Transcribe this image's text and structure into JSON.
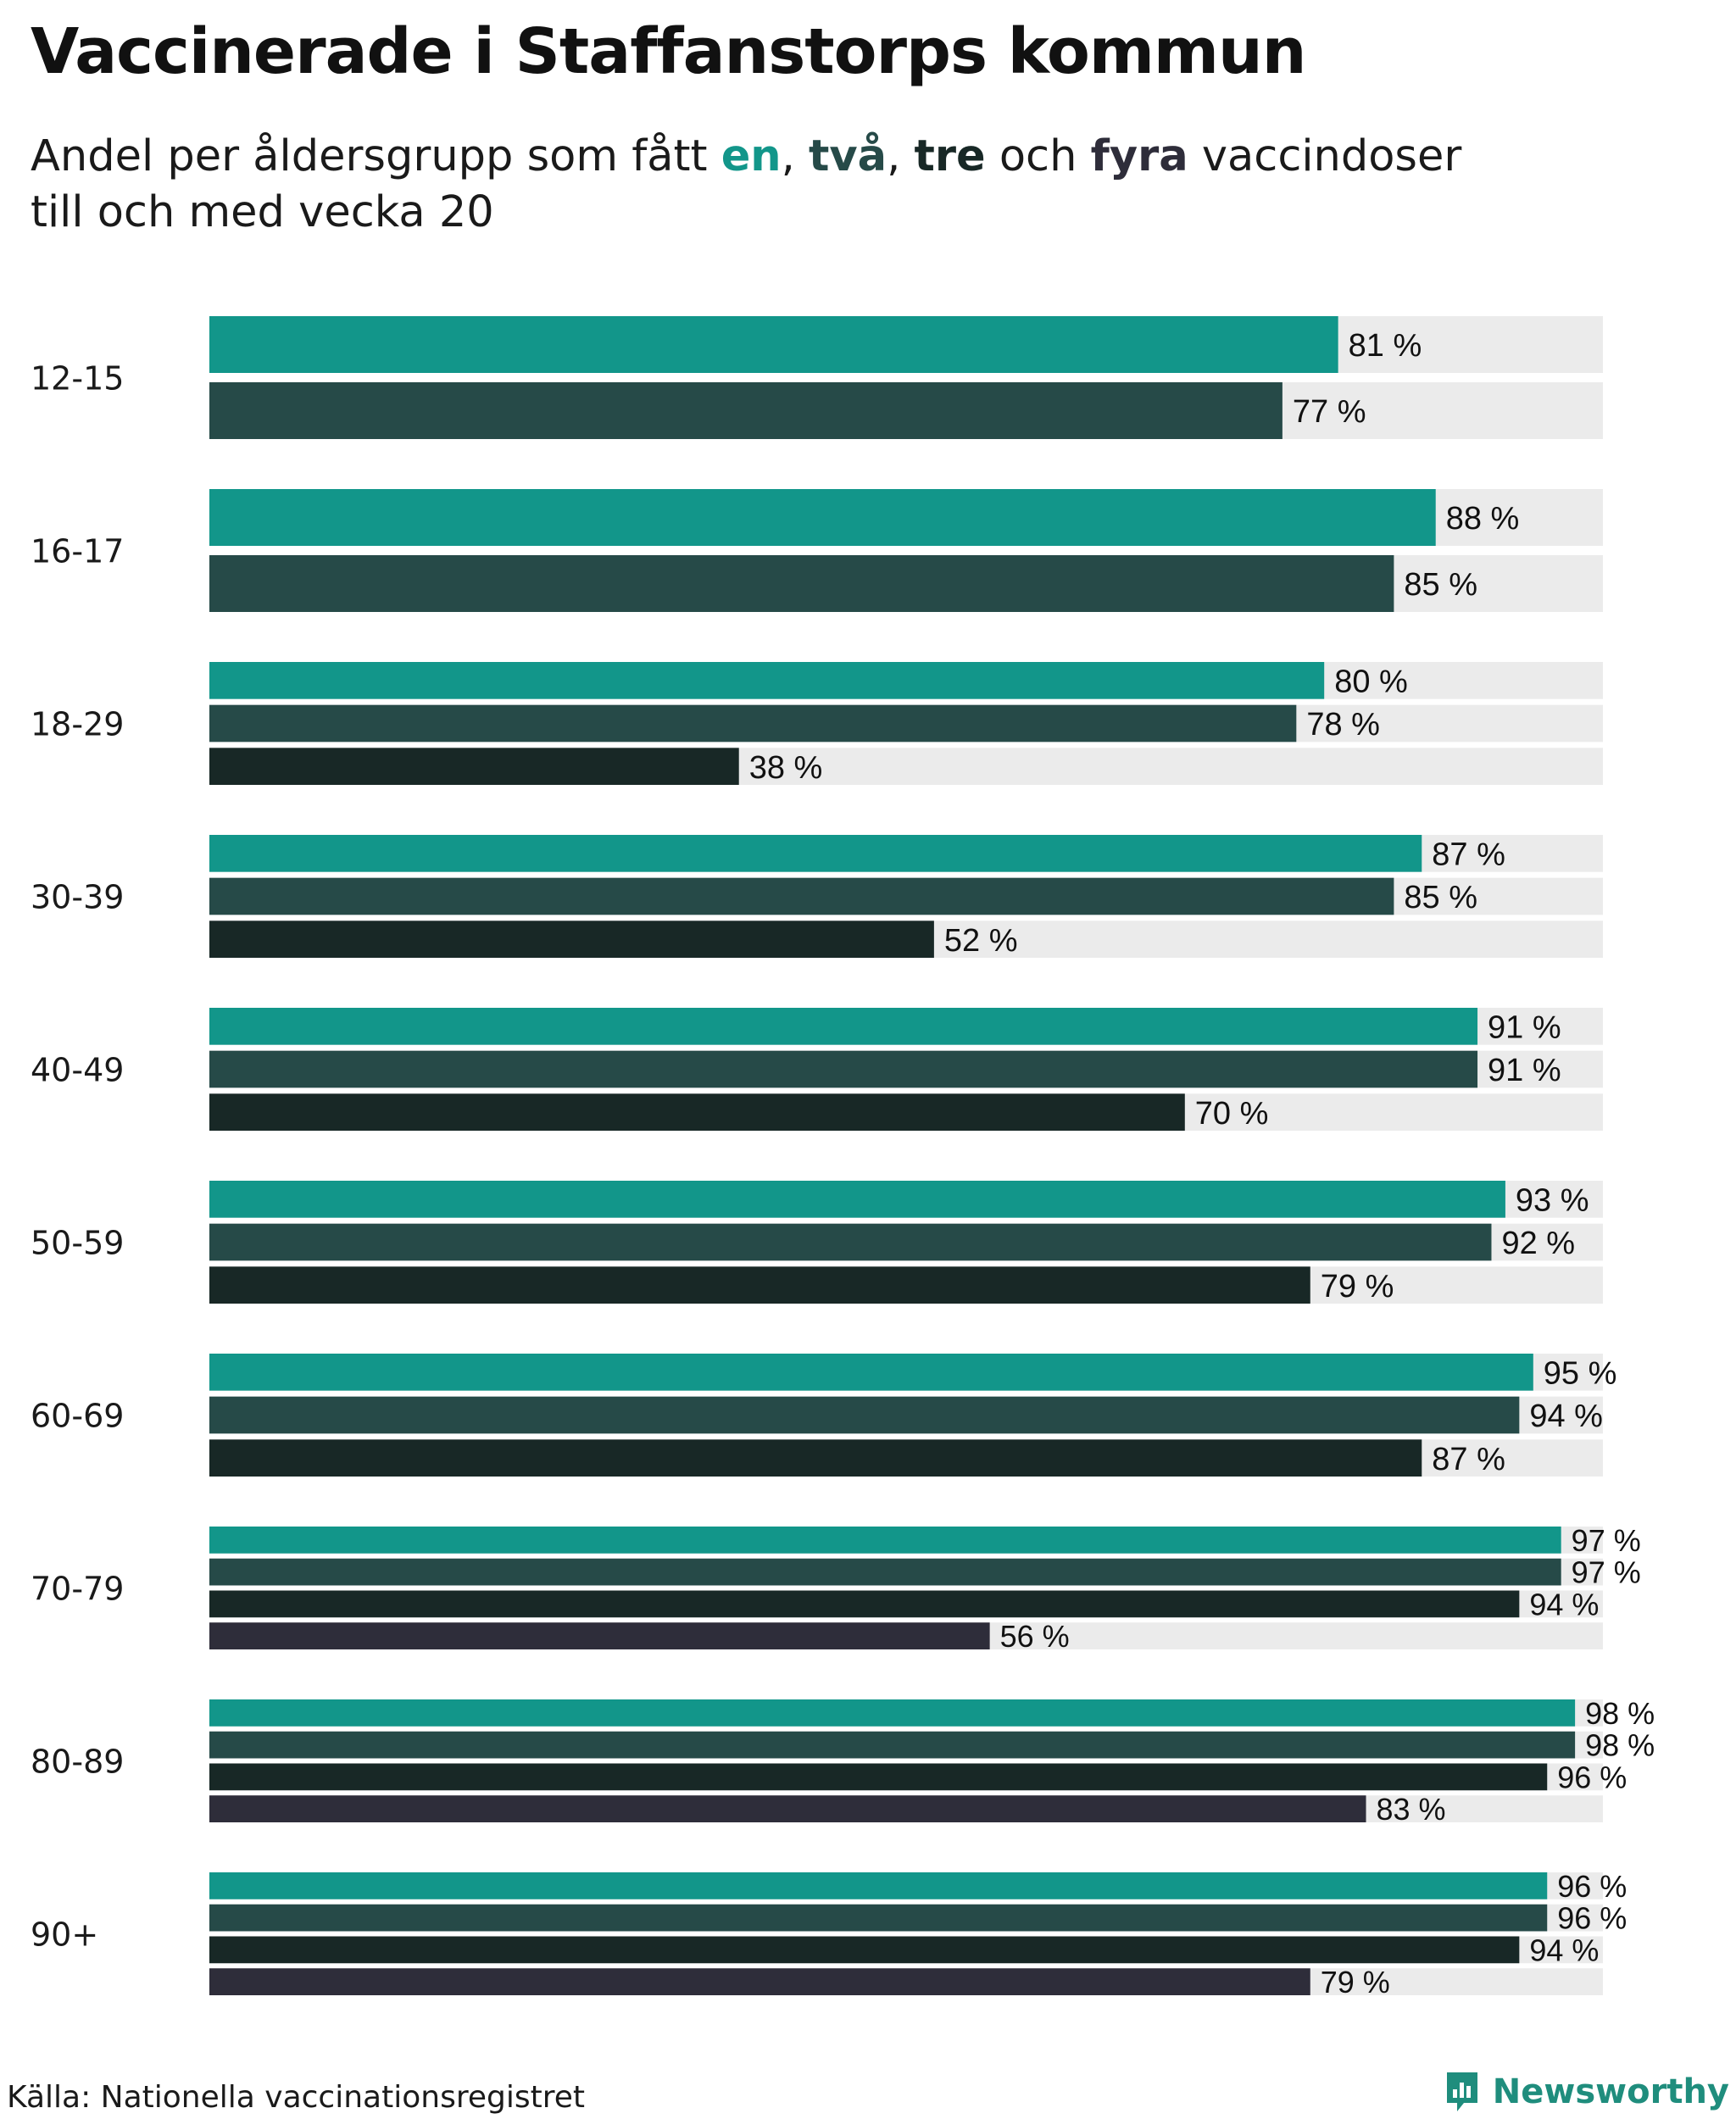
{
  "title": "Vaccinerade i Staffanstorps kommun",
  "subtitle": {
    "prefix": "Andel per åldersgrupp som fått ",
    "dose1": "en",
    "sep1": ", ",
    "dose2": "två",
    "sep2": ", ",
    "dose3": "tre",
    "sep3": " och ",
    "dose4": "fyra",
    "suffix": " vaccindoser",
    "line2": "till och med vecka 20"
  },
  "colors": {
    "dose1": "#12968a",
    "dose2": "#264a48",
    "dose3": "#182826",
    "dose4": "#2e2d3a",
    "track": "#ebebeb"
  },
  "chart_data": {
    "type": "bar",
    "orientation": "horizontal",
    "value_suffix": " %",
    "xlim": [
      0,
      100
    ],
    "categories": [
      "12-15",
      "16-17",
      "18-29",
      "30-39",
      "40-49",
      "50-59",
      "60-69",
      "70-79",
      "80-89",
      "90+"
    ],
    "series": [
      {
        "values": [
          81,
          88,
          80,
          87,
          91,
          93,
          95,
          97,
          98,
          96
        ]
      },
      {
        "values": [
          77,
          85,
          78,
          85,
          91,
          92,
          94,
          97,
          98,
          96
        ]
      },
      {
        "values": [
          null,
          null,
          38,
          52,
          70,
          79,
          87,
          94,
          96,
          94
        ]
      },
      {
        "values": [
          null,
          null,
          null,
          null,
          null,
          null,
          null,
          56,
          83,
          79
        ]
      }
    ]
  },
  "footer": {
    "source": "Källa: Nationella vaccinationsregistret",
    "brand": "Newsworthy"
  }
}
